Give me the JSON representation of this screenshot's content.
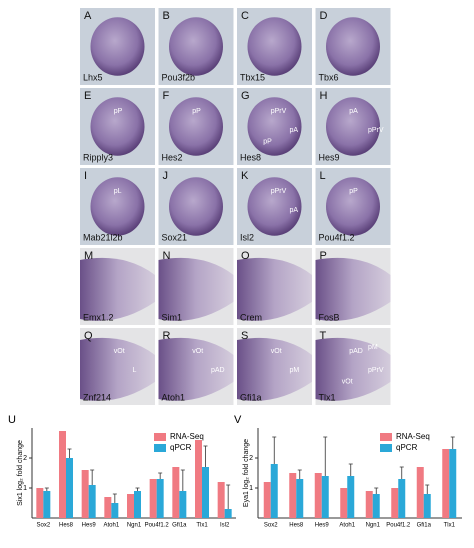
{
  "panels": [
    {
      "letter": "A",
      "gene": "Lhx5"
    },
    {
      "letter": "B",
      "gene": "Pou3f2b"
    },
    {
      "letter": "C",
      "gene": "Tbx15"
    },
    {
      "letter": "D",
      "gene": "Tbx6"
    },
    {
      "letter": "E",
      "gene": "Ripply3",
      "annotations": [
        "pP"
      ]
    },
    {
      "letter": "F",
      "gene": "Hes2",
      "annotations": [
        "pP"
      ]
    },
    {
      "letter": "G",
      "gene": "Hes8",
      "annotations": [
        "pPrV",
        "pA",
        "pP"
      ]
    },
    {
      "letter": "H",
      "gene": "Hes9",
      "annotations": [
        "pA",
        "pPrV"
      ]
    },
    {
      "letter": "I",
      "gene": "Mab21l2b",
      "annotations": [
        "pL"
      ]
    },
    {
      "letter": "J",
      "gene": "Sox21"
    },
    {
      "letter": "K",
      "gene": "Isl2",
      "annotations": [
        "pPrV",
        "pA"
      ]
    },
    {
      "letter": "L",
      "gene": "Pou4f1.2",
      "annotations": [
        "pP"
      ]
    },
    {
      "letter": "M",
      "gene": "Emx1.2"
    },
    {
      "letter": "N",
      "gene": "Sim1"
    },
    {
      "letter": "O",
      "gene": "Crem"
    },
    {
      "letter": "P",
      "gene": "FosB"
    },
    {
      "letter": "Q",
      "gene": "Znf214",
      "annotations": [
        "vOt",
        "L"
      ]
    },
    {
      "letter": "R",
      "gene": "Atoh1",
      "annotations": [
        "vOt",
        "pAD"
      ]
    },
    {
      "letter": "S",
      "gene": "Gfi1a",
      "annotations": [
        "vOt",
        "pM"
      ]
    },
    {
      "letter": "T",
      "gene": "Tlx1",
      "annotations": [
        "pAD",
        "pPrV",
        "vOt",
        "pM"
      ]
    }
  ],
  "chart_data": [
    {
      "type": "bar",
      "panel": "U",
      "y_label": "Six1 log₂ fold change",
      "categories": [
        "Sox2",
        "Hes8",
        "Hes9",
        "Atoh1",
        "Ngn1",
        "Pou4f1.2",
        "Gfi1a",
        "Tlx1",
        "Isl2"
      ],
      "series": [
        {
          "name": "RNA-Seq",
          "color": "#f07a82",
          "values": [
            1.0,
            2.9,
            1.6,
            0.7,
            0.8,
            1.3,
            1.7,
            2.6,
            1.2
          ]
        },
        {
          "name": "qPCR",
          "color": "#2aa8d8",
          "values": [
            0.9,
            2.0,
            1.1,
            0.5,
            0.9,
            1.3,
            0.9,
            1.7,
            0.3
          ],
          "errors": [
            0.1,
            0.3,
            0.5,
            0.3,
            0.1,
            0.2,
            0.7,
            0.7,
            0.8
          ]
        }
      ],
      "ylim": [
        0,
        3
      ],
      "yticks": [
        1,
        2
      ]
    },
    {
      "type": "bar",
      "panel": "V",
      "y_label": "Eya1 log₂ fold change",
      "categories": [
        "Sox2",
        "Hes8",
        "Hes9",
        "Atoh1",
        "Ngn1",
        "Pou4f1.2",
        "Gfi1a",
        "Tlx1"
      ],
      "series": [
        {
          "name": "RNA-Seq",
          "color": "#f07a82",
          "values": [
            1.2,
            1.5,
            1.5,
            1.0,
            0.9,
            1.0,
            1.7,
            2.3
          ]
        },
        {
          "name": "qPCR",
          "color": "#2aa8d8",
          "values": [
            1.8,
            1.3,
            1.4,
            1.4,
            0.8,
            1.3,
            0.8,
            2.3
          ],
          "errors": [
            0.9,
            0.3,
            1.3,
            0.4,
            0.2,
            0.4,
            0.3,
            0.4
          ]
        }
      ],
      "ylim": [
        0,
        3
      ],
      "yticks": [
        1,
        2
      ]
    }
  ]
}
